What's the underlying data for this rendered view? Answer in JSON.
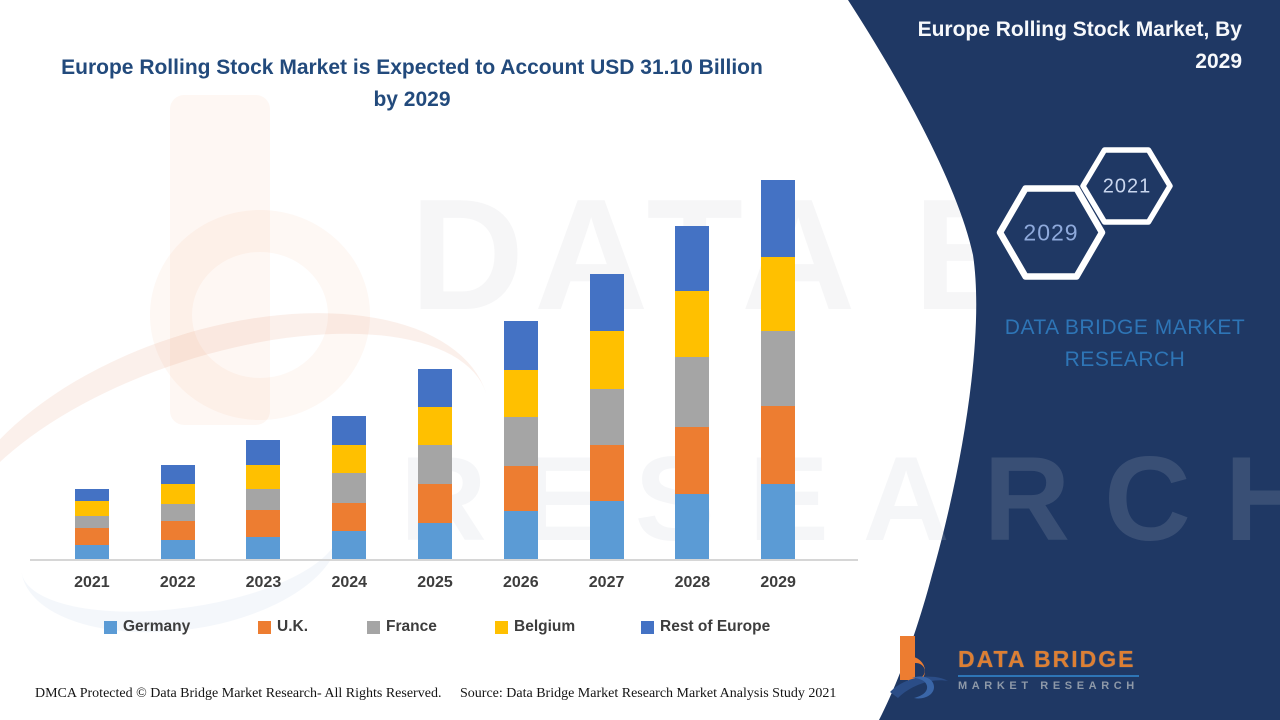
{
  "header": {
    "left_title": "Europe Rolling Stock Market is Expected to Account USD 31.10 Billion by 2029"
  },
  "panel": {
    "title": "Europe Rolling Stock Market, By 2029",
    "hexagons": [
      {
        "label": "2029"
      },
      {
        "label": "2021"
      }
    ],
    "brand": "DATA BRIDGE MARKET RESEARCH",
    "navy_color": "#1F3864",
    "brand_text_color": "#2E75B6"
  },
  "chart_data": {
    "type": "bar",
    "stacked": true,
    "title": "Europe Rolling Stock Market is Expected to Account USD 31.10 Billion by 2029",
    "unit": "USD Billion",
    "categories": [
      "2021",
      "2022",
      "2023",
      "2024",
      "2025",
      "2026",
      "2027",
      "2028",
      "2029"
    ],
    "series": [
      {
        "name": "Germany",
        "color": "#5B9BD5",
        "values": [
          1.2,
          1.6,
          1.9,
          2.4,
          3.0,
          4.0,
          4.8,
          5.4,
          6.2
        ]
      },
      {
        "name": "U.K.",
        "color": "#ED7D31",
        "values": [
          1.4,
          1.6,
          2.2,
          2.3,
          3.2,
          3.7,
          4.6,
          5.5,
          6.4
        ]
      },
      {
        "name": "France",
        "color": "#A5A5A5",
        "values": [
          1.0,
          1.4,
          1.7,
          2.4,
          3.2,
          4.0,
          4.6,
          5.7,
          6.1
        ]
      },
      {
        "name": "Belgium",
        "color": "#FFC000",
        "values": [
          1.2,
          1.6,
          2.0,
          2.3,
          3.1,
          3.8,
          4.7,
          5.4,
          6.1
        ]
      },
      {
        "name": "Rest of Europe",
        "color": "#4472C4",
        "values": [
          1.0,
          1.6,
          2.0,
          2.4,
          3.1,
          4.0,
          4.7,
          5.3,
          6.3
        ]
      }
    ],
    "totals": [
      5.8,
      7.8,
      9.8,
      11.8,
      15.6,
      19.5,
      23.4,
      27.3,
      31.1
    ],
    "ylim": [
      0,
      32
    ],
    "y_axis_visible": false,
    "gridlines": false,
    "legend_position": "bottom",
    "xlabel": "",
    "ylabel": ""
  },
  "watermarks": {
    "top_text": "DATA BRI",
    "lower_text": "RESEARCH"
  },
  "logo": {
    "name": "DATA BRIDGE",
    "tagline": "MARKET RESEARCH"
  },
  "footer": {
    "dmca": "DMCA Protected © Data Bridge Market Research- All Rights Reserved.",
    "source": "Source: Data Bridge Market Research Market Analysis Study 2021"
  }
}
